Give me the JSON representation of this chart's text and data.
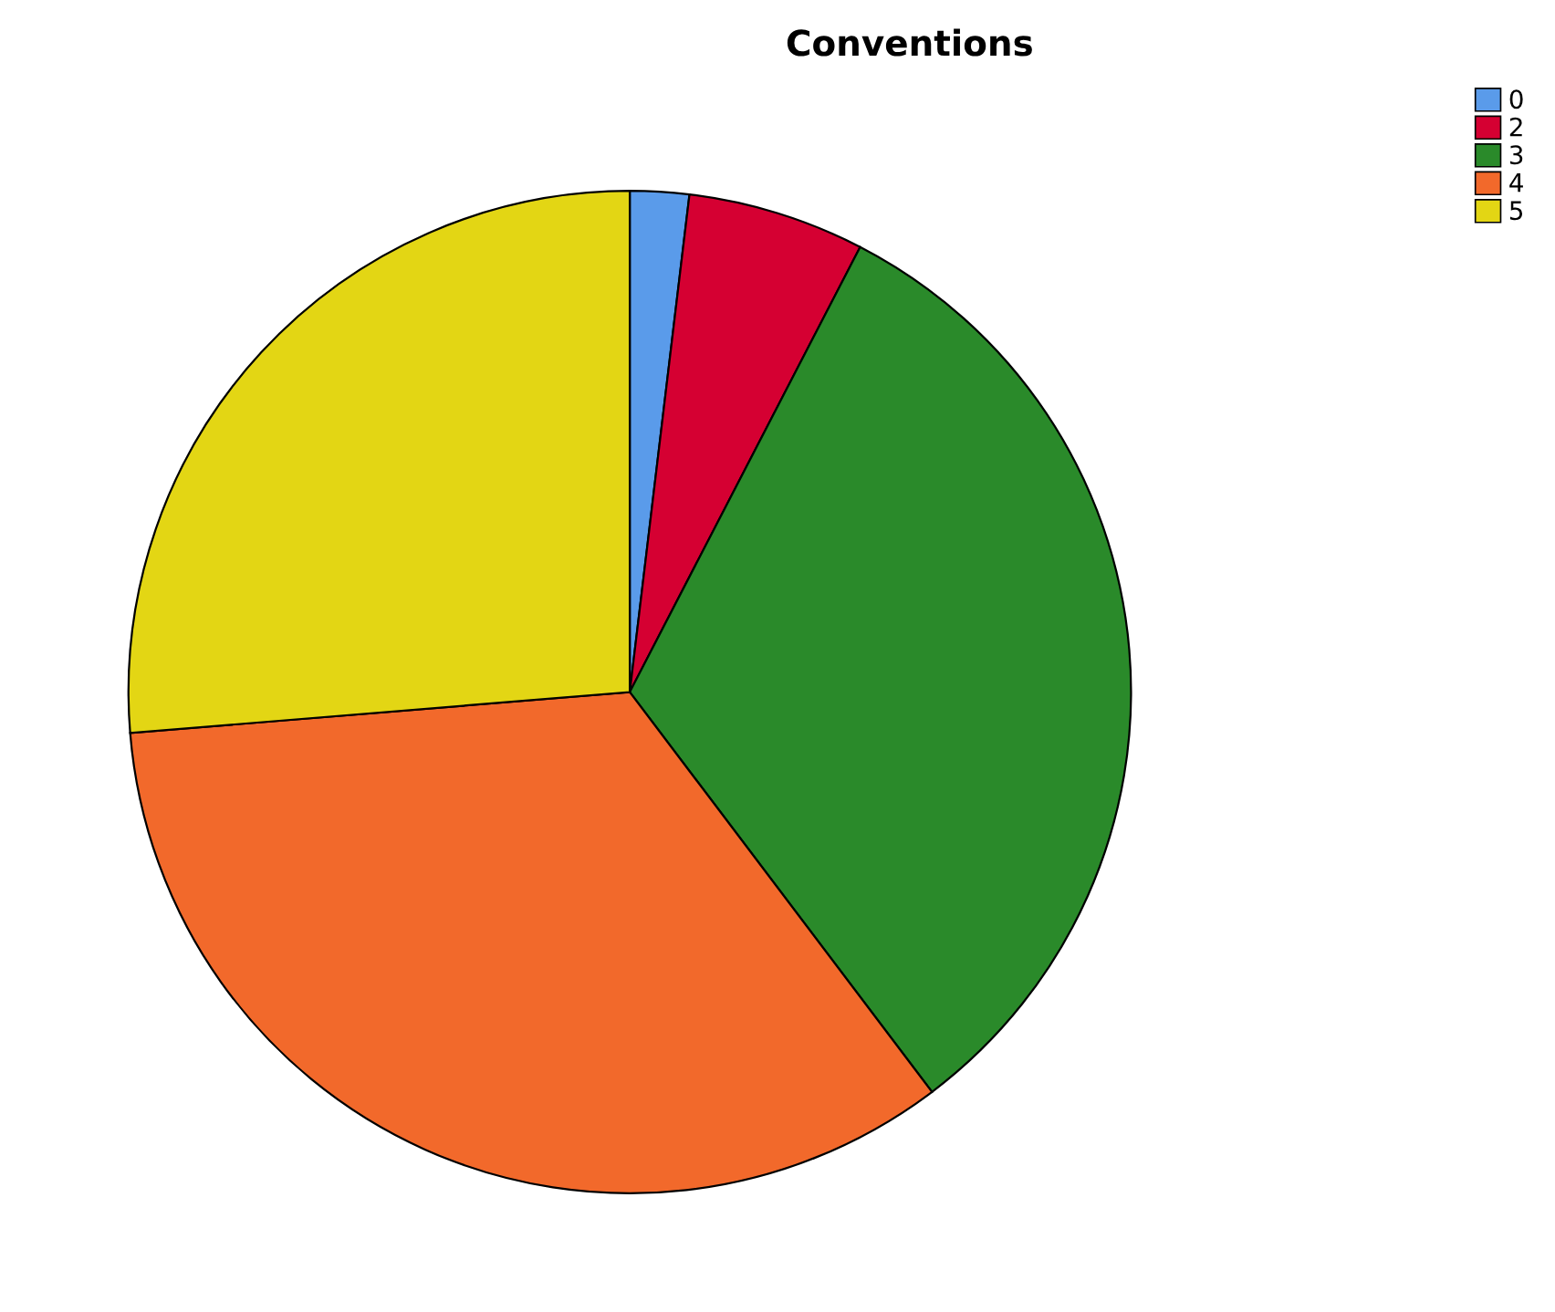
{
  "chart_data": {
    "type": "pie",
    "title": "Conventions",
    "categories": [
      "0",
      "2",
      "3",
      "4",
      "5"
    ],
    "values": [
      1.9,
      5.7,
      32.1,
      34.0,
      26.3
    ],
    "colors": [
      "#5a9bea",
      "#d50032",
      "#2a8a2a",
      "#f2692b",
      "#e3d614"
    ],
    "legend": "top right"
  }
}
